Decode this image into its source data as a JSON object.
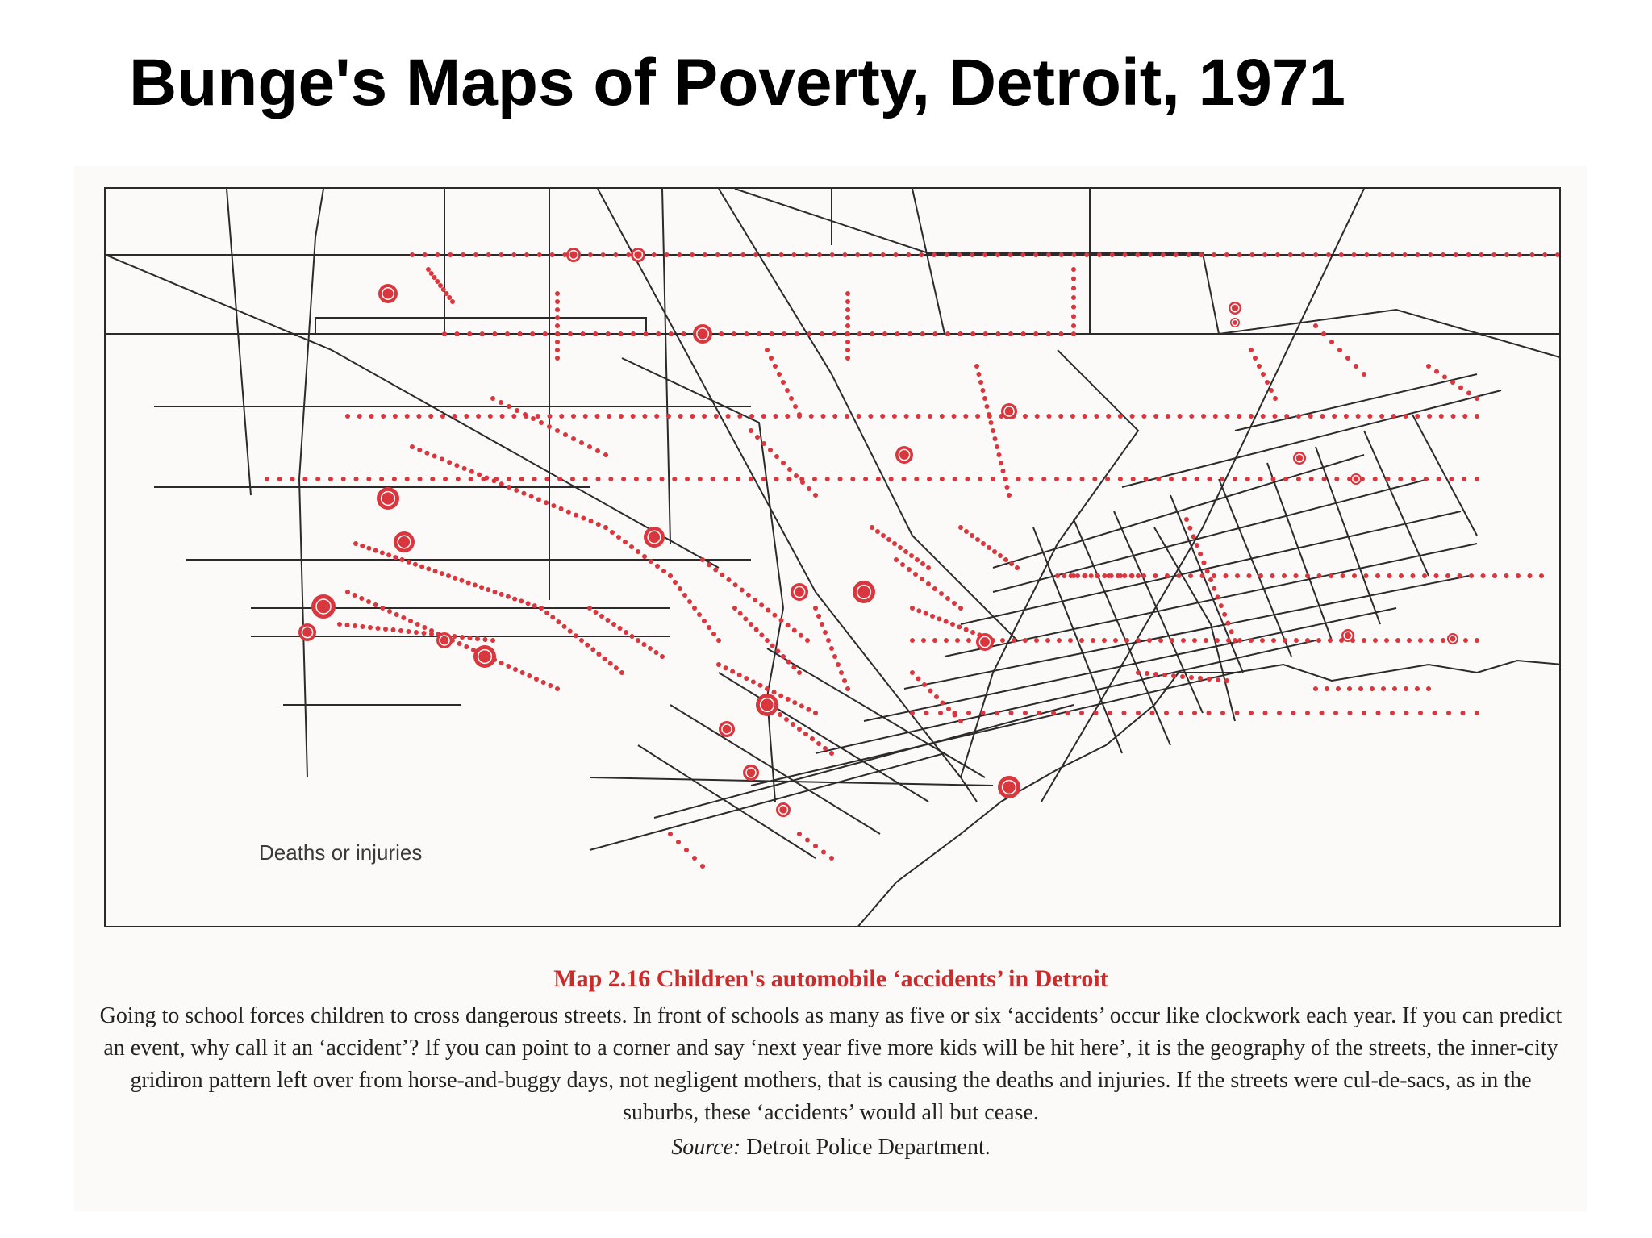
{
  "slide": {
    "title": "Bunge's Maps of Poverty, Detroit, 1971"
  },
  "map": {
    "legend_label": "Deaths or injuries",
    "colors": {
      "accident_marker": "#d9363e",
      "street_line": "#2b2b2b",
      "frame": "#2a2a2a"
    }
  },
  "caption": {
    "title": "Map 2.16 Children's automobile ‘accidents’ in Detroit",
    "body": "Going to school forces children to cross dangerous streets. In front of schools as many as five or six ‘accidents’ occur like clockwork each year. If you can predict an event, why call it an ‘accident’? If you can point to a corner and say ‘next year five more kids will be hit here’, it is the geography of the streets, the inner-city gridiron pattern left over from horse-and-buggy days, not negligent mothers, that is causing the deaths and injuries. If the streets were cul-de-sacs, as in the suburbs, these ‘accidents’ would all but cease.",
    "source_label": "Source:",
    "source_value": "Detroit Police Department."
  }
}
